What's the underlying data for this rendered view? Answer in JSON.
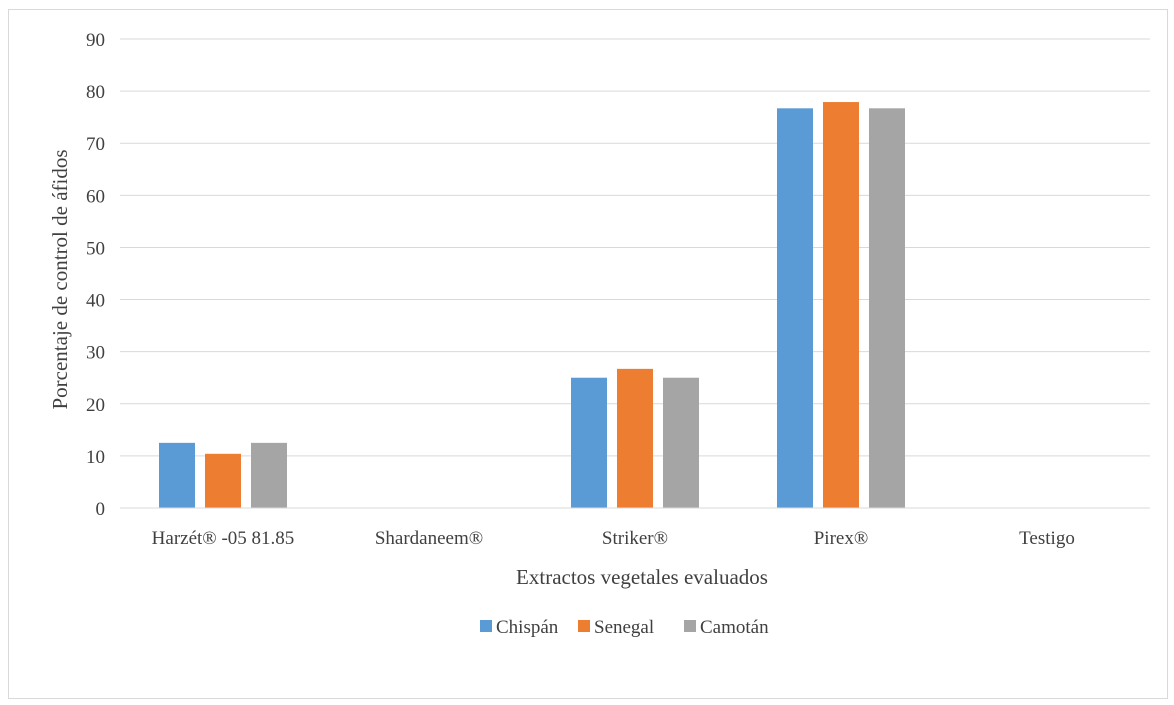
{
  "chart_data": {
    "type": "bar",
    "title": "",
    "xlabel": "Extractos vegetales evaluados",
    "ylabel": "Porcentaje de control de áfidos",
    "categories": [
      "Harzét® -05 81.85",
      "Shardaneem®",
      "Striker®",
      "Pirex®",
      "Testigo"
    ],
    "series": [
      {
        "name": "Chispán",
        "color": "#5B9BD5",
        "values": [
          12.5,
          0,
          25,
          76.7,
          0
        ]
      },
      {
        "name": "Senegal",
        "color": "#ED7D31",
        "values": [
          10.4,
          0,
          26.7,
          77.9,
          0
        ]
      },
      {
        "name": "Camotán",
        "color": "#A5A5A5",
        "values": [
          12.5,
          0,
          25,
          76.7,
          0
        ]
      }
    ],
    "ylim": [
      0,
      90
    ],
    "yticks": [
      0,
      10,
      20,
      30,
      40,
      50,
      60,
      70,
      80,
      90
    ],
    "grid": true,
    "legend_position": "bottom"
  }
}
